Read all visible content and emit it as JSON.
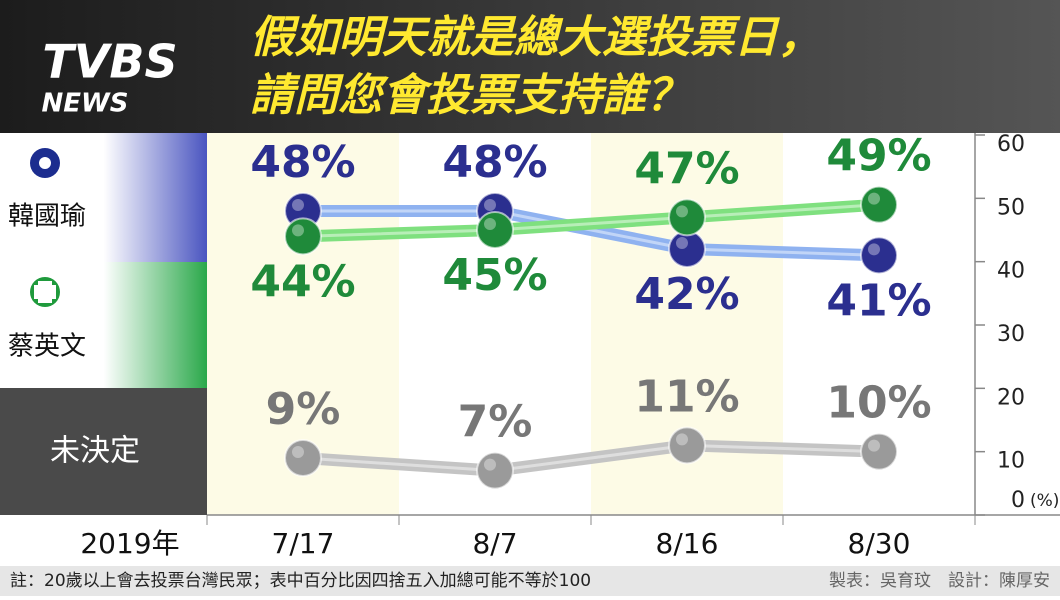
{
  "logo": {
    "brand": "TVBS",
    "sub": "NEWS"
  },
  "chart_data": {
    "type": "line",
    "title": [
      "假如明天就是總大選投票日，",
      "請問您會投票支持誰？"
    ],
    "x_caption": "2019年",
    "categories": [
      "7/17",
      "8/7",
      "8/16",
      "8/30"
    ],
    "series": [
      {
        "name": "韓國瑜",
        "color": "#2b2f8f",
        "line_color": "#8fb2f0",
        "values": [
          48,
          48,
          42,
          41
        ],
        "value_labels": [
          "48%",
          "48%",
          "42%",
          "41%"
        ]
      },
      {
        "name": "蔡英文",
        "color": "#1f8a3a",
        "line_color": "#7fe07f",
        "values": [
          44,
          45,
          47,
          49
        ],
        "value_labels": [
          "44%",
          "45%",
          "47%",
          "49%"
        ]
      },
      {
        "name": "未決定",
        "color": "#9a9a9a",
        "line_color": "#c4c4c4",
        "values": [
          9,
          7,
          11,
          10
        ],
        "value_labels": [
          "9%",
          "7%",
          "11%",
          "10%"
        ]
      }
    ],
    "ylim": [
      0,
      60
    ],
    "yticks": [
      0,
      10,
      20,
      30,
      40,
      50,
      60
    ],
    "y_unit": "(%)"
  },
  "footer": {
    "note": "註：20歲以上會去投票台灣民眾；表中百分比因四捨五入加總可能不等於100",
    "credits": "製表：吳育玟　設計：陳厚安"
  }
}
